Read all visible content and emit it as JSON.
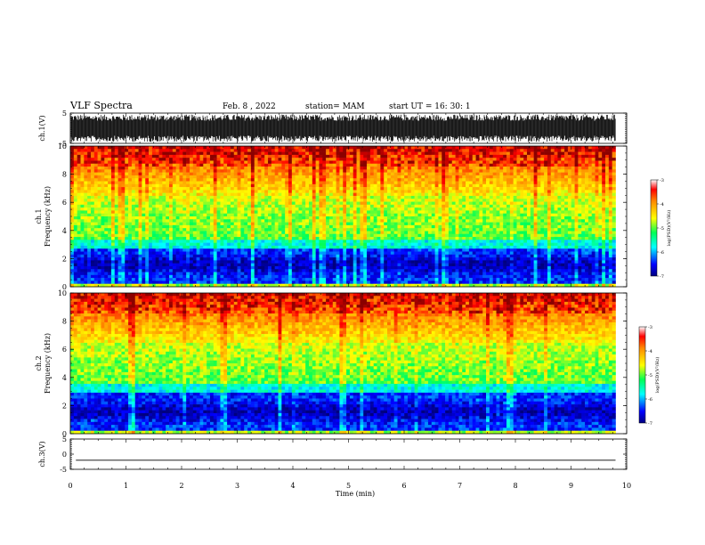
{
  "header": {
    "title": "VLF Spectra",
    "date": "Feb. 8 , 2022",
    "station": "station= MAM",
    "start": "start UT =   16: 30: 1"
  },
  "chart_data": [
    {
      "type": "line",
      "name": "ch1-waveform",
      "ylabel": "ch.1(V)",
      "ylim": [
        -5,
        5
      ],
      "yticks": [
        5,
        -5
      ],
      "xlim": [
        0,
        10
      ],
      "description": "dense broadband waveform spanning most of the range",
      "amplitude": 4.5
    },
    {
      "type": "heatmap",
      "name": "ch1-spectrogram",
      "ylabel_line1": "ch.1",
      "ylabel_line2": "Frequency (kHz)",
      "ylim": [
        0,
        10
      ],
      "yticks": [
        0,
        2,
        4,
        6,
        8,
        10
      ],
      "xlim": [
        0,
        10
      ],
      "data_end_min": 9.8,
      "colorbar": {
        "label": "log(PSD)(V²/Hz)",
        "range": [
          -7,
          -3
        ],
        "ticks": [
          -3,
          -4,
          -5,
          -6,
          -7
        ]
      }
    },
    {
      "type": "heatmap",
      "name": "ch2-spectrogram",
      "ylabel_line1": "ch.2",
      "ylabel_line2": "Frequency (kHz)",
      "ylim": [
        0,
        10
      ],
      "yticks": [
        0,
        2,
        4,
        6,
        8,
        10
      ],
      "xlim": [
        0,
        10
      ],
      "data_end_min": 9.8,
      "colorbar": {
        "label": "log(PSD)(V²/Hz)",
        "range": [
          -7,
          -3
        ],
        "ticks": [
          -3,
          -4,
          -5,
          -6,
          -7
        ]
      }
    },
    {
      "type": "line",
      "name": "ch3-waveform",
      "ylabel": "ch.3(V)",
      "ylim": [
        -5,
        5
      ],
      "yticks": [
        5,
        0,
        -5
      ],
      "xlim": [
        0,
        10
      ],
      "constant_value": -2
    }
  ],
  "xaxis": {
    "label": "Time (min)",
    "ticks": [
      "0",
      "1",
      "2",
      "3",
      "4",
      "5",
      "6",
      "7",
      "8",
      "9",
      "10"
    ]
  },
  "colors": {
    "spectrum": [
      "#00008f",
      "#0000ff",
      "#00ffff",
      "#00ff55",
      "#aaff00",
      "#ffff00",
      "#ff8800",
      "#ff0000",
      "#8b0000"
    ],
    "axes": "#000000",
    "trace": "#000000"
  }
}
